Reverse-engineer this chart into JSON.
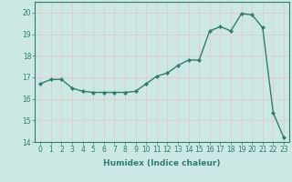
{
  "x": [
    0,
    1,
    2,
    3,
    4,
    5,
    6,
    7,
    8,
    9,
    10,
    11,
    12,
    13,
    14,
    15,
    16,
    17,
    18,
    19,
    20,
    21,
    22,
    23
  ],
  "y": [
    16.7,
    16.9,
    16.9,
    16.5,
    16.35,
    16.3,
    16.3,
    16.3,
    16.3,
    16.35,
    16.7,
    17.05,
    17.2,
    17.55,
    17.8,
    17.8,
    19.15,
    19.35,
    19.15,
    19.95,
    19.9,
    19.3,
    15.35,
    14.2
  ],
  "line_color": "#2e7d6e",
  "marker": "D",
  "markersize": 2.0,
  "linewidth": 1.0,
  "xlabel": "Humidex (Indice chaleur)",
  "xlim": [
    -0.5,
    23.5
  ],
  "ylim": [
    14,
    20.5
  ],
  "yticks": [
    14,
    15,
    16,
    17,
    18,
    19,
    20
  ],
  "xticks": [
    0,
    1,
    2,
    3,
    4,
    5,
    6,
    7,
    8,
    9,
    10,
    11,
    12,
    13,
    14,
    15,
    16,
    17,
    18,
    19,
    20,
    21,
    22,
    23
  ],
  "background_color": "#cce8e4",
  "grid_color": "#e8c8c8",
  "tick_color": "#2e7d6e",
  "label_color": "#2e7d6e",
  "xlabel_fontsize": 6.5,
  "tick_fontsize": 5.5
}
